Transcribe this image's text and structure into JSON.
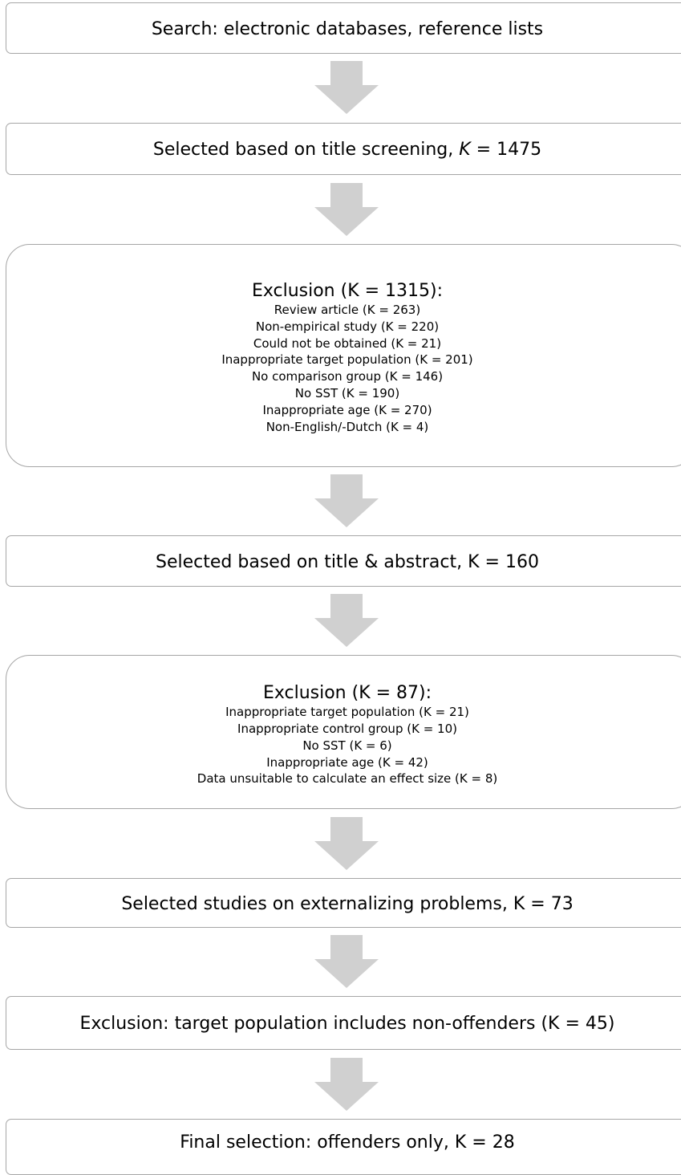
{
  "steps": {
    "search": "Search: electronic databases, reference lists",
    "title_screening_prefix": "Selected based on title screening, ",
    "title_screening_k": "K",
    "title_screening_suffix": " = 1475",
    "exclusion1": {
      "title": "Exclusion (K = 1315):",
      "items": [
        "Review article (K = 263)",
        "Non-empirical study (K = 220)",
        "Could not be obtained (K = 21)",
        "Inappropriate target population (K = 201)",
        "No comparison group (K = 146)",
        "No SST (K = 190)",
        "Inappropriate age (K = 270)",
        "Non-English/-Dutch (K = 4)"
      ]
    },
    "title_abstract": "Selected based on title & abstract, K = 160",
    "exclusion2": {
      "title": "Exclusion (K = 87):",
      "items": [
        "Inappropriate target population (K = 21)",
        "Inappropriate control group (K = 10)",
        "No SST (K = 6)",
        "Inappropriate age (K = 42)",
        "Data unsuitable to calculate an effect size (K = 8)"
      ]
    },
    "externalizing": "Selected studies on externalizing problems, K = 73",
    "exclusion3": "Exclusion: target population includes non-offenders (K = 45)",
    "final": "Final selection: offenders only, K = 28"
  },
  "colors": {
    "box_border": "#a6a6a6",
    "arrow_fill": "#d0d0d0",
    "text": "#000000"
  }
}
